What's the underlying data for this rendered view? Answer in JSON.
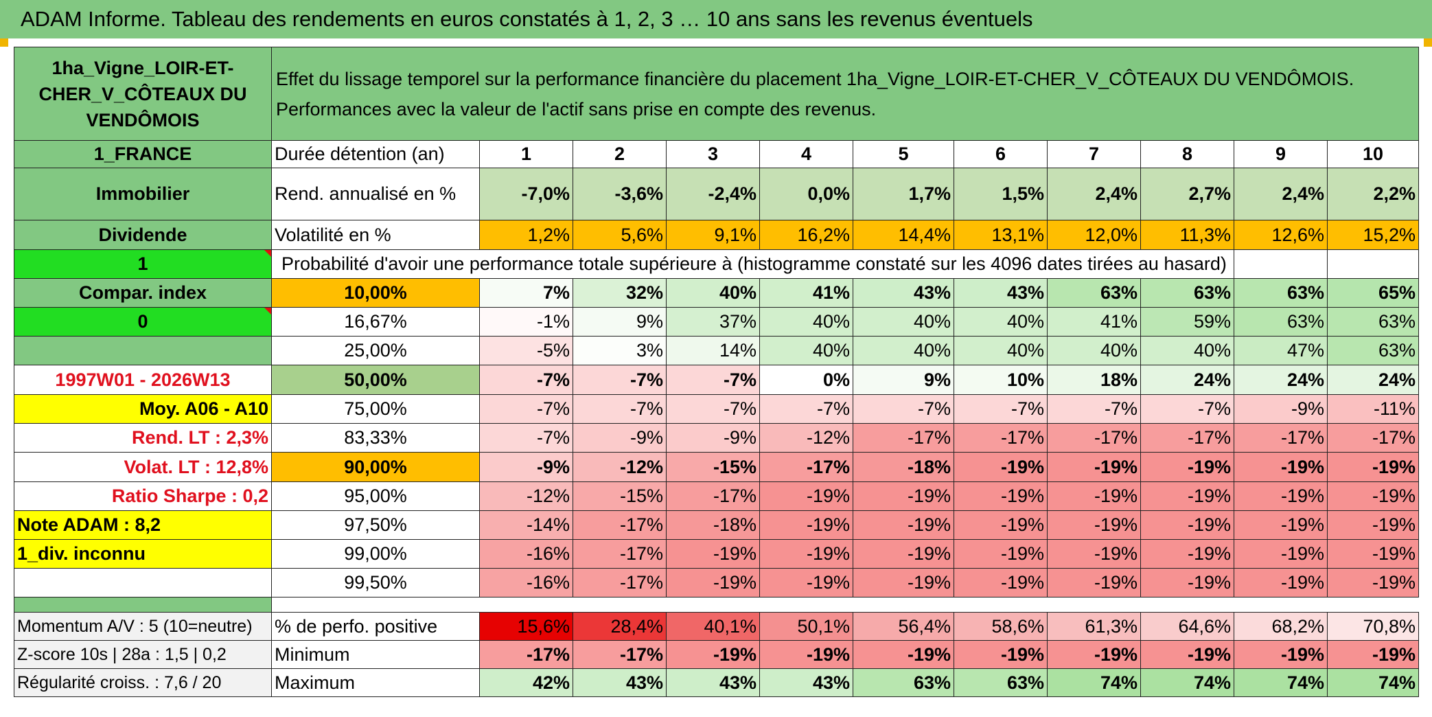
{
  "title": "ADAM Informe. Tableau des rendements en euros constatés à 1, 2, 3 … 10 ans sans les revenus éventuels",
  "fund_name": "1ha_Vigne_LOIR-ET-CHER_V_CÔTEAUX DU VENDÔMOIS",
  "header_text_line1": "Effet du lissage temporel sur la performance financière du placement 1ha_Vigne_LOIR-ET-CHER_V_CÔTEAUX DU VENDÔMOIS.",
  "header_text_line2": "Performances avec la valeur de l'actif sans prise en compte des revenus.",
  "left": {
    "country": "1_FRANCE",
    "category": "Immobilier",
    "income_type": "Dividende",
    "flag_value1": "1",
    "compar_index": "Compar. index",
    "flag_value2": "0",
    "period": "1997W01 - 2026W13",
    "moy": "Moy. A06 - A10",
    "rend_lt": "Rend. LT :   2,3%",
    "volat_lt": "Volat. LT :   12,8%",
    "sharpe": "Ratio Sharpe :    0,2",
    "note": "Note ADAM : 8,2",
    "div": "1_div. inconnu",
    "momentum": "Momentum A/V : 5 (10=neutre)",
    "zscore": "Z-score 10s | 28a : 1,5 | 0,2",
    "regularite": "Régularité croiss. : 7,6 / 20"
  },
  "duree_label": "Durée détention (an)",
  "years": [
    "1",
    "2",
    "3",
    "4",
    "5",
    "6",
    "7",
    "8",
    "9",
    "10"
  ],
  "rend_label": "Rend. annualisé en %",
  "rend": [
    "-7,0%",
    "-3,6%",
    "-2,4%",
    "0,0%",
    "1,7%",
    "1,5%",
    "2,4%",
    "2,7%",
    "2,4%",
    "2,2%"
  ],
  "vol_label": "Volatilité en %",
  "vol": [
    "1,2%",
    "5,6%",
    "9,1%",
    "16,2%",
    "14,4%",
    "13,1%",
    "12,0%",
    "11,3%",
    "12,6%",
    "15,2%"
  ],
  "prob_label": "Probabilité d'avoir une performance totale supérieure à (histogramme constaté sur les 4096 dates tirées au hasard)",
  "prob_rows": [
    {
      "p": "10,00%",
      "v": [
        "7%",
        "32%",
        "40%",
        "41%",
        "43%",
        "43%",
        "63%",
        "63%",
        "63%",
        "65%"
      ],
      "bold": true
    },
    {
      "p": "16,67%",
      "v": [
        "-1%",
        "9%",
        "37%",
        "40%",
        "40%",
        "40%",
        "41%",
        "59%",
        "63%",
        "63%"
      ],
      "bold": false
    },
    {
      "p": "25,00%",
      "v": [
        "-5%",
        "3%",
        "14%",
        "40%",
        "40%",
        "40%",
        "40%",
        "40%",
        "47%",
        "63%"
      ],
      "bold": false
    },
    {
      "p": "50,00%",
      "v": [
        "-7%",
        "-7%",
        "-7%",
        "0%",
        "9%",
        "10%",
        "18%",
        "24%",
        "24%",
        "24%"
      ],
      "bold": true
    },
    {
      "p": "75,00%",
      "v": [
        "-7%",
        "-7%",
        "-7%",
        "-7%",
        "-7%",
        "-7%",
        "-7%",
        "-7%",
        "-9%",
        "-11%"
      ],
      "bold": false
    },
    {
      "p": "83,33%",
      "v": [
        "-7%",
        "-9%",
        "-9%",
        "-12%",
        "-17%",
        "-17%",
        "-17%",
        "-17%",
        "-17%",
        "-17%"
      ],
      "bold": false
    },
    {
      "p": "90,00%",
      "v": [
        "-9%",
        "-12%",
        "-15%",
        "-17%",
        "-18%",
        "-19%",
        "-19%",
        "-19%",
        "-19%",
        "-19%"
      ],
      "bold": true
    },
    {
      "p": "95,00%",
      "v": [
        "-12%",
        "-15%",
        "-17%",
        "-19%",
        "-19%",
        "-19%",
        "-19%",
        "-19%",
        "-19%",
        "-19%"
      ],
      "bold": false
    },
    {
      "p": "97,50%",
      "v": [
        "-14%",
        "-17%",
        "-18%",
        "-19%",
        "-19%",
        "-19%",
        "-19%",
        "-19%",
        "-19%",
        "-19%"
      ],
      "bold": false
    },
    {
      "p": "99,00%",
      "v": [
        "-16%",
        "-17%",
        "-19%",
        "-19%",
        "-19%",
        "-19%",
        "-19%",
        "-19%",
        "-19%",
        "-19%"
      ],
      "bold": false
    },
    {
      "p": "99,50%",
      "v": [
        "-16%",
        "-17%",
        "-19%",
        "-19%",
        "-19%",
        "-19%",
        "-19%",
        "-19%",
        "-19%",
        "-19%"
      ],
      "bold": false
    }
  ],
  "pos_label": "% de perfo. positive",
  "pos": [
    "15,6%",
    "28,4%",
    "40,1%",
    "50,1%",
    "56,4%",
    "58,6%",
    "61,3%",
    "64,6%",
    "68,2%",
    "70,8%"
  ],
  "min_label": "Minimum",
  "min": [
    "-17%",
    "-17%",
    "-19%",
    "-19%",
    "-19%",
    "-19%",
    "-19%",
    "-19%",
    "-19%",
    "-19%"
  ],
  "max_label": "Maximum",
  "max": [
    "42%",
    "43%",
    "43%",
    "43%",
    "63%",
    "63%",
    "74%",
    "74%",
    "74%",
    "74%"
  ],
  "colors": {
    "title_green": "#82c882",
    "bright_green": "#22dd22",
    "yellow": "#ffff00",
    "orange": "#ffbe00",
    "red_text": "#e0101e"
  }
}
